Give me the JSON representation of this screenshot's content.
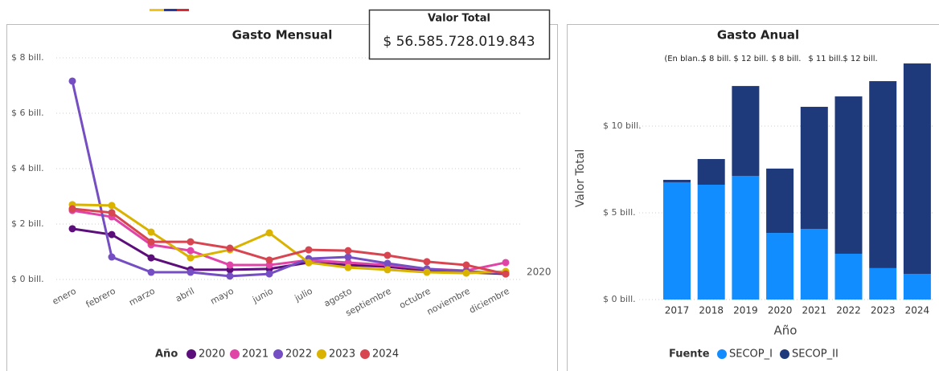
{
  "card": {
    "title": "Valor Total",
    "value": "$ 56.585.728.019.843"
  },
  "chart_data": [
    {
      "type": "line",
      "title": "Gasto Mensual",
      "categories": [
        "enero",
        "febrero",
        "marzo",
        "abril",
        "mayo",
        "junio",
        "julio",
        "agosto",
        "septiembre",
        "octubre",
        "noviembre",
        "diciembre"
      ],
      "legend_title": "Año",
      "series": [
        {
          "name": "2020",
          "color": "#5c0e7a",
          "values": [
            1.83,
            1.62,
            0.78,
            0.35,
            0.35,
            0.38,
            0.61,
            0.52,
            0.46,
            0.32,
            0.26,
            0.2
          ]
        },
        {
          "name": "2021",
          "color": "#e044a7",
          "values": [
            2.49,
            2.26,
            1.25,
            1.04,
            0.52,
            0.52,
            0.7,
            0.61,
            0.52,
            0.38,
            0.32,
            0.61
          ]
        },
        {
          "name": "2022",
          "color": "#744ec2",
          "values": [
            7.16,
            0.81,
            0.26,
            0.26,
            0.12,
            0.2,
            0.75,
            0.81,
            0.58,
            0.38,
            0.29,
            0.23
          ]
        },
        {
          "name": "2023",
          "color": "#d9b300",
          "values": [
            2.7,
            2.67,
            1.71,
            0.78,
            1.07,
            1.68,
            0.61,
            0.43,
            0.35,
            0.26,
            0.23,
            0.29
          ]
        },
        {
          "name": "2024",
          "color": "#d64550",
          "values": [
            2.55,
            2.41,
            1.36,
            1.36,
            1.13,
            0.7,
            1.07,
            1.04,
            0.87,
            0.64,
            0.52,
            0.2
          ]
        }
      ],
      "ylim": [
        0,
        8
      ],
      "yticks": [
        {
          "value": 0,
          "label": "$ 0 bill."
        },
        {
          "value": 2,
          "label": "$ 2 bill."
        },
        {
          "value": 4,
          "label": "$ 4 bill."
        },
        {
          "value": 6,
          "label": "$ 6 bill."
        },
        {
          "value": 8,
          "label": "$ 8 bill."
        }
      ],
      "grid": true,
      "annotations": [
        "2020"
      ]
    },
    {
      "type": "bar",
      "stacked": true,
      "title": "Gasto Anual",
      "categories": [
        "2017",
        "2018",
        "2019",
        "2020",
        "2021",
        "2022",
        "2023",
        "2024"
      ],
      "x_label": "Año",
      "y_label": "Valor Total",
      "legend_title": "Fuente",
      "series": [
        {
          "name": "SECOP_I",
          "color": "#118dff",
          "values": [
            6.76,
            6.62,
            7.13,
            3.84,
            4.07,
            2.64,
            1.81,
            1.48
          ]
        },
        {
          "name": "SECOP_II",
          "color": "#1f3a7a",
          "values": [
            0.14,
            1.48,
            5.18,
            3.71,
            7.04,
            9.07,
            10.78,
            12.13
          ]
        }
      ],
      "ylim": [
        0,
        14
      ],
      "yticks": [
        {
          "value": 0,
          "label": "$ 0 bill."
        },
        {
          "value": 5,
          "label": "$ 5 bill."
        },
        {
          "value": 10,
          "label": "$ 10 bill."
        }
      ],
      "grid": true,
      "annotations": [
        "(En blan…",
        "$ 8 bill.",
        "$ 12 bill.",
        "$ 8 bill.",
        "$ 11 bill.",
        "$ 12 bill."
      ]
    }
  ]
}
